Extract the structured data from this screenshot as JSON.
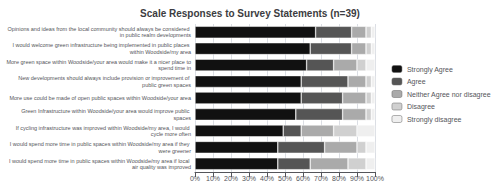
{
  "chart_data": {
    "type": "bar",
    "orientation": "horizontal",
    "stacked": true,
    "title": "Scale Responses to Survey Statements (n=39)",
    "categories": [
      "Opinions and ideas from the local community should always be considered in public realm developments",
      "I would welcome green infrastructure being implemented in public places within Woodside/my area",
      "More green space within Woodside/your area would make it a nicer place to spend time in",
      "New developments should always include provision or improvement of public green spaces",
      "More use could be made of open public spaces within Woodside/your area",
      "Green Infrastructure within Woodside/your area would improve public spaces",
      "If cycling infrastructure was improved within Woodside/my area, I would cycle more often",
      "I would spend more time in public spaces within Woodside/my area if they were greener",
      "I would spend more time in public spaces within Woodside/my area if local air quality was improved"
    ],
    "series": [
      {
        "name": "Strongly Agree",
        "color": "#111111",
        "values": [
          67,
          64,
          62,
          59,
          59,
          56,
          49,
          46,
          46
        ]
      },
      {
        "name": "Agree",
        "color": "#555555",
        "values": [
          20,
          23,
          15,
          26,
          23,
          26,
          10,
          26,
          18
        ]
      },
      {
        "name": "Neither Agree nor disagree",
        "color": "#aaaaaa",
        "values": [
          8,
          8,
          13,
          10,
          13,
          13,
          18,
          18,
          21
        ]
      },
      {
        "name": "Disagree",
        "color": "#d0d0d0",
        "values": [
          3,
          3,
          5,
          3,
          3,
          3,
          13,
          5,
          10
        ]
      },
      {
        "name": "Strongly disagree",
        "color": "#efefef",
        "values": [
          2,
          2,
          5,
          2,
          2,
          2,
          10,
          5,
          5
        ]
      }
    ],
    "xlim": [
      0,
      100
    ],
    "xticks": [
      {
        "value": 0,
        "label": "0%"
      },
      {
        "value": 10,
        "label": "10%"
      },
      {
        "value": 20,
        "label": "20%"
      },
      {
        "value": 30,
        "label": "30%"
      },
      {
        "value": 40,
        "label": "40%"
      },
      {
        "value": 50,
        "label": "50%"
      },
      {
        "value": 60,
        "label": "60%"
      },
      {
        "value": 70,
        "label": "70%"
      },
      {
        "value": 80,
        "label": "80%"
      },
      {
        "value": 90,
        "label": "90%"
      },
      {
        "value": 100,
        "label": "100%"
      }
    ],
    "grid": true,
    "legend": "right"
  }
}
